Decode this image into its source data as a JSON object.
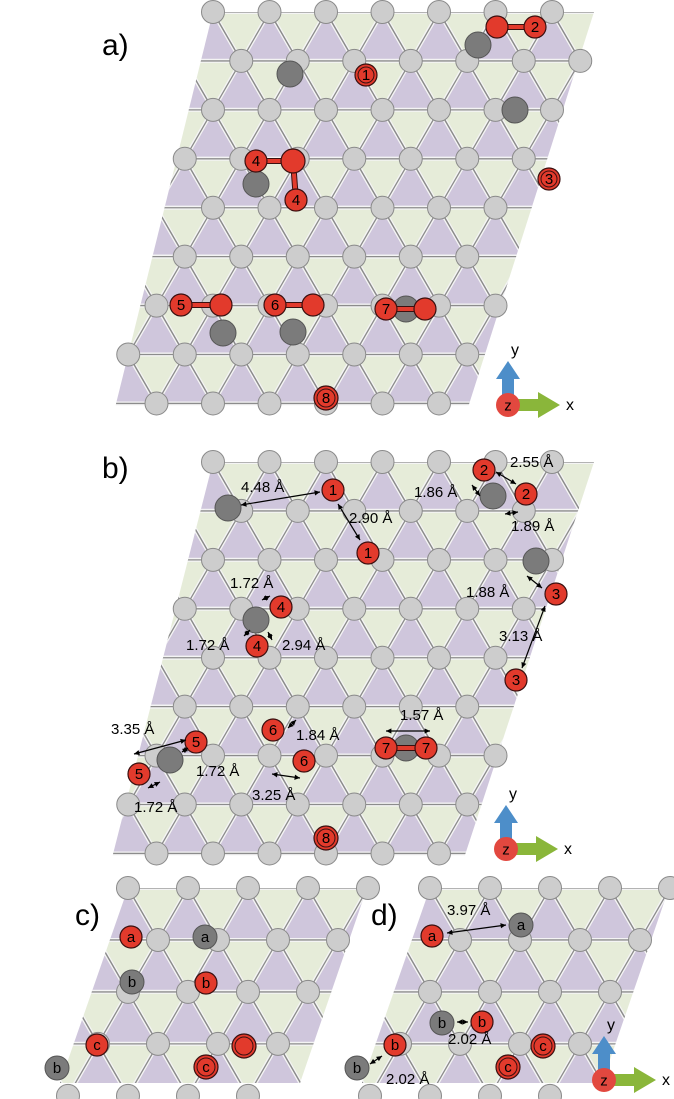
{
  "panels": [
    {
      "key": "a",
      "label": "a)"
    },
    {
      "key": "b",
      "label": "b)"
    },
    {
      "key": "c",
      "label": "c)"
    },
    {
      "key": "d",
      "label": "d)"
    }
  ],
  "axes_labels": {
    "x": "x",
    "y": "y",
    "z": "z"
  },
  "atom_labels": {
    "a": [
      "1",
      "2",
      "3",
      "4",
      "4",
      "5",
      "6",
      "7",
      "8"
    ],
    "b": [
      "1",
      "1",
      "2",
      "2",
      "3",
      "3",
      "4",
      "4",
      "5",
      "5",
      "6",
      "6",
      "7",
      "7",
      "8"
    ],
    "c": [
      "a",
      "a",
      "b",
      "b",
      "b",
      "c",
      "c"
    ],
    "d": [
      "a",
      "a",
      "b",
      "b",
      "b",
      "b",
      "c",
      "c"
    ]
  },
  "measurements": {
    "b": [
      "4.48 Å",
      "2.90 Å",
      "2.55 Å",
      "1.86 Å",
      "1.89 Å",
      "1.88 Å",
      "3.13 Å",
      "1.72 Å",
      "1.72 Å",
      "2.94 Å",
      "1.57 Å",
      "1.84 Å",
      "3.35 Å",
      "1.72 Å",
      "1.72 Å",
      "3.25 Å"
    ],
    "d": [
      "3.97 Å",
      "2.02 Å",
      "2.02 Å"
    ]
  },
  "colors": {
    "background": "#ffffff",
    "triangle_purple": "#cfc6dc",
    "triangle_green": "#e6ecd9",
    "lattice_line": "#8c8c8c",
    "lattice_node": "#cdcdcd",
    "surface_atom": "#7b7b7b",
    "adsorbate_atom": "#e23a2c",
    "axis_x": "#8ab63a",
    "axis_y": "#4d8ec9",
    "axis_z": "#e2483f"
  }
}
